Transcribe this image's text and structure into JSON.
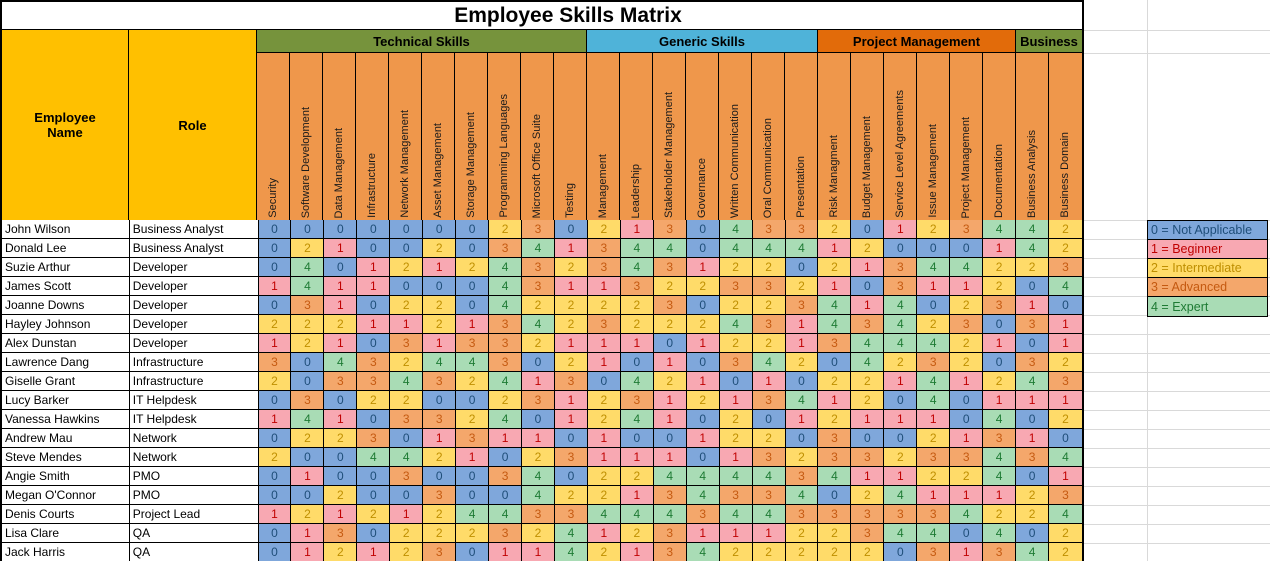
{
  "title": "Employee Skills Matrix",
  "table": {
    "employee_header": "Employee Name",
    "role_header": "Role",
    "groups": [
      {
        "label": "Technical Skills",
        "span": 10,
        "color": "#76933C"
      },
      {
        "label": "Generic Skills",
        "span": 7,
        "color": "#4FB3D9"
      },
      {
        "label": "Project Management",
        "span": 6,
        "color": "#E26B0A"
      },
      {
        "label": "Business",
        "span": 2,
        "color": "#76933C"
      }
    ],
    "skills": [
      "Security",
      "Software Development",
      "Data Management",
      "Infrastructure",
      "Network Management",
      "Asset Management",
      "Storage Management",
      "Programming Languages",
      "Microsoft Office Suite",
      "Testing",
      "Management",
      "Leadership",
      "Stakeholder Management",
      "Governance",
      "Written Communication",
      "Oral Communication",
      "Presentation",
      "Risk Managment",
      "Budget Management",
      "Service Level Agreements",
      "Issue Management",
      "Project Management",
      "Documentation",
      "Business Analysis",
      "Business Domain"
    ],
    "rows": [
      {
        "name": "John Wilson",
        "role": "Business Analyst",
        "scores": [
          0,
          0,
          0,
          0,
          0,
          0,
          0,
          2,
          3,
          0,
          2,
          1,
          3,
          0,
          4,
          3,
          3,
          2,
          0,
          1,
          2,
          3,
          4,
          4,
          2
        ]
      },
      {
        "name": "Donald Lee",
        "role": "Business Analyst",
        "scores": [
          0,
          2,
          1,
          0,
          0,
          2,
          0,
          3,
          4,
          1,
          3,
          4,
          4,
          0,
          4,
          4,
          4,
          1,
          2,
          0,
          0,
          0,
          1,
          4,
          2
        ]
      },
      {
        "name": "Suzie Arthur",
        "role": "Developer",
        "scores": [
          0,
          4,
          0,
          1,
          2,
          1,
          2,
          4,
          3,
          2,
          3,
          4,
          3,
          1,
          2,
          2,
          0,
          2,
          1,
          3,
          4,
          4,
          2,
          2,
          3
        ]
      },
      {
        "name": "James Scott",
        "role": "Developer",
        "scores": [
          1,
          4,
          1,
          1,
          0,
          0,
          0,
          4,
          3,
          1,
          1,
          3,
          2,
          2,
          3,
          3,
          2,
          1,
          0,
          3,
          1,
          1,
          2,
          0,
          4
        ]
      },
      {
        "name": "Joanne Downs",
        "role": "Developer",
        "scores": [
          0,
          3,
          1,
          0,
          2,
          2,
          0,
          4,
          2,
          2,
          2,
          2,
          3,
          0,
          2,
          2,
          3,
          4,
          1,
          4,
          0,
          2,
          3,
          1,
          0
        ]
      },
      {
        "name": "Hayley Johnson",
        "role": "Developer",
        "scores": [
          2,
          2,
          2,
          1,
          1,
          2,
          1,
          3,
          4,
          2,
          3,
          2,
          2,
          2,
          4,
          3,
          1,
          4,
          3,
          4,
          2,
          3,
          0,
          3,
          1
        ]
      },
      {
        "name": "Alex Dunstan",
        "role": "Developer",
        "scores": [
          1,
          2,
          1,
          0,
          3,
          1,
          3,
          3,
          2,
          1,
          1,
          1,
          0,
          1,
          2,
          2,
          1,
          3,
          4,
          4,
          4,
          2,
          1,
          0,
          1
        ]
      },
      {
        "name": "Lawrence Dang",
        "role": "Infrastructure",
        "scores": [
          3,
          0,
          4,
          3,
          2,
          4,
          4,
          3,
          0,
          2,
          1,
          0,
          1,
          0,
          3,
          4,
          2,
          0,
          4,
          2,
          3,
          2,
          0,
          3,
          2
        ]
      },
      {
        "name": "Giselle Grant",
        "role": "Infrastructure",
        "scores": [
          2,
          0,
          3,
          3,
          4,
          3,
          2,
          4,
          1,
          3,
          0,
          4,
          2,
          1,
          0,
          1,
          0,
          2,
          2,
          1,
          4,
          1,
          2,
          4,
          3
        ]
      },
      {
        "name": "Lucy Barker",
        "role": "IT Helpdesk",
        "scores": [
          0,
          3,
          0,
          2,
          2,
          0,
          0,
          2,
          3,
          1,
          2,
          3,
          1,
          2,
          1,
          3,
          4,
          1,
          2,
          0,
          4,
          0,
          1,
          1,
          1
        ]
      },
      {
        "name": "Vanessa Hawkins",
        "role": "IT Helpdesk",
        "scores": [
          1,
          4,
          1,
          0,
          3,
          3,
          2,
          4,
          0,
          1,
          2,
          4,
          1,
          0,
          2,
          0,
          1,
          2,
          1,
          1,
          1,
          0,
          4,
          0,
          2
        ]
      },
      {
        "name": "Andrew Mau",
        "role": "Network",
        "scores": [
          0,
          2,
          2,
          3,
          0,
          1,
          3,
          1,
          1,
          0,
          1,
          0,
          0,
          1,
          2,
          2,
          0,
          3,
          0,
          0,
          2,
          1,
          3,
          1,
          0
        ]
      },
      {
        "name": "Steve Mendes",
        "role": "Network",
        "scores": [
          2,
          0,
          0,
          4,
          4,
          2,
          1,
          0,
          2,
          3,
          1,
          1,
          1,
          0,
          1,
          3,
          2,
          3,
          3,
          2,
          3,
          3,
          4,
          3,
          4
        ]
      },
      {
        "name": "Angie Smith",
        "role": "PMO",
        "scores": [
          0,
          1,
          0,
          0,
          3,
          0,
          0,
          3,
          4,
          0,
          2,
          2,
          4,
          4,
          4,
          4,
          3,
          4,
          1,
          1,
          2,
          2,
          4,
          0,
          1
        ]
      },
      {
        "name": "Megan O'Connor",
        "role": "PMO",
        "scores": [
          0,
          0,
          2,
          0,
          0,
          3,
          0,
          0,
          4,
          2,
          2,
          1,
          3,
          4,
          3,
          3,
          4,
          0,
          2,
          4,
          1,
          1,
          1,
          2,
          3
        ]
      },
      {
        "name": "Denis Courts",
        "role": "Project Lead",
        "scores": [
          1,
          2,
          1,
          2,
          1,
          2,
          4,
          4,
          3,
          3,
          4,
          4,
          4,
          3,
          4,
          4,
          3,
          3,
          3,
          3,
          3,
          4,
          2,
          2,
          4
        ]
      },
      {
        "name": "Lisa Clare",
        "role": "QA",
        "scores": [
          0,
          1,
          3,
          0,
          2,
          2,
          2,
          3,
          2,
          4,
          1,
          2,
          3,
          1,
          1,
          1,
          2,
          2,
          3,
          4,
          4,
          0,
          4,
          0,
          2
        ]
      },
      {
        "name": "Jack Harris",
        "role": "QA",
        "scores": [
          0,
          1,
          2,
          1,
          2,
          3,
          0,
          1,
          1,
          4,
          2,
          1,
          3,
          4,
          2,
          2,
          2,
          2,
          2,
          0,
          3,
          1,
          3,
          4,
          2
        ]
      }
    ]
  },
  "legend": [
    {
      "value": 0,
      "label": "0 = Not Applicable"
    },
    {
      "value": 1,
      "label": "1 = Beginner"
    },
    {
      "value": 2,
      "label": "2 = Intermediate"
    },
    {
      "value": 3,
      "label": "3 = Advanced"
    },
    {
      "value": 4,
      "label": "4 = Expert"
    }
  ],
  "score_palette": {
    "0": {
      "bg": "#7FA7DB",
      "fg": "#1F4E79"
    },
    "1": {
      "bg": "#F8A8B2",
      "fg": "#C00000"
    },
    "2": {
      "bg": "#FFDB69",
      "fg": "#BF8F00"
    },
    "3": {
      "bg": "#F4A76B",
      "fg": "#C55A11"
    },
    "4": {
      "bg": "#A9DCB5",
      "fg": "#1E7B34"
    }
  },
  "colors": {
    "header_gold": "#FFC000",
    "skill_header_orange": "#EF974B",
    "grid_line": "#D9D9D9"
  }
}
